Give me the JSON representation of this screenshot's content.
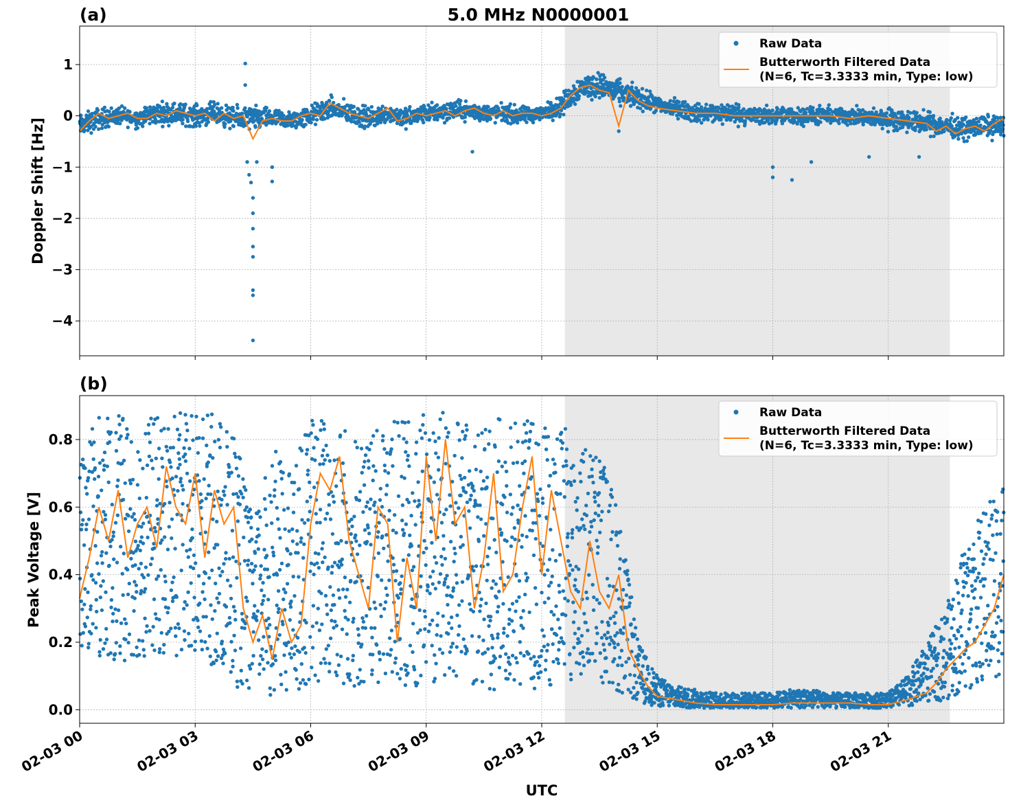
{
  "title": "5.0 MHz N0000001",
  "colors": {
    "raw": "#1f77b4",
    "filtered": "#ff7f0e",
    "shade": "#e8e8e8",
    "grid": "#b0b0b0"
  },
  "xlabel": "UTC",
  "chart_data": [
    {
      "panel_label": "(a)",
      "type": "scatter",
      "ylabel": "Doppler Shift [Hz]",
      "xlim_hours": [
        0,
        24
      ],
      "ylim": [
        -4.68,
        1.75
      ],
      "yticks": [
        1,
        0,
        -1,
        -2,
        -3,
        -4
      ],
      "ytick_labels": [
        "1",
        "0",
        "−1",
        "−2",
        "−3",
        "−4"
      ],
      "shaded_region_hours": [
        12.6,
        22.6
      ],
      "grid": true,
      "legend": {
        "position": "top-right",
        "raw_label": "Raw Data",
        "filtered_label_1": "Butterworth Filtered Data",
        "filtered_label_2": "(N=6, Tc=3.3333 min, Type: low)"
      },
      "series": [
        {
          "name": "Raw Data",
          "kind": "scatter",
          "x_hours": [
            0,
            0.5,
            1,
            1.5,
            2,
            2.5,
            3,
            3.5,
            4,
            4.5,
            5,
            5.5,
            6,
            6.5,
            7,
            7.5,
            8,
            8.5,
            9,
            9.5,
            10,
            10.5,
            11,
            11.5,
            12,
            12.5,
            13,
            13.5,
            14,
            14.5,
            15,
            15.5,
            16,
            16.5,
            17,
            17.5,
            18,
            18.5,
            19,
            19.5,
            20,
            20.5,
            21,
            21.5,
            22,
            22.5,
            23,
            23.5,
            24
          ],
          "center": [
            -0.2,
            -0.05,
            0.0,
            -0.05,
            0.05,
            0.05,
            0.0,
            0.05,
            -0.05,
            -0.05,
            -0.05,
            -0.1,
            0.0,
            0.15,
            0.05,
            -0.05,
            0.05,
            -0.05,
            0.05,
            0.1,
            0.1,
            0.05,
            0.05,
            0.0,
            0.05,
            0.2,
            0.55,
            0.6,
            0.45,
            0.35,
            0.2,
            0.15,
            0.05,
            0.05,
            0.05,
            0.0,
            0.0,
            0.0,
            0.0,
            0.0,
            0.0,
            -0.05,
            -0.05,
            -0.1,
            -0.15,
            -0.2,
            -0.25,
            -0.2,
            -0.2
          ],
          "spread": [
            0.3,
            0.3,
            0.25,
            0.25,
            0.3,
            0.3,
            0.3,
            0.3,
            0.3,
            0.35,
            0.25,
            0.25,
            0.3,
            0.3,
            0.3,
            0.3,
            0.25,
            0.3,
            0.25,
            0.3,
            0.25,
            0.25,
            0.25,
            0.25,
            0.2,
            0.3,
            0.35,
            0.35,
            0.35,
            0.3,
            0.25,
            0.25,
            0.25,
            0.3,
            0.3,
            0.25,
            0.25,
            0.25,
            0.25,
            0.25,
            0.25,
            0.25,
            0.3,
            0.3,
            0.3,
            0.3,
            0.3,
            0.3,
            0.3
          ],
          "outliers": [
            [
              4.3,
              1.02
            ],
            [
              4.3,
              0.6
            ],
            [
              4.35,
              -0.9
            ],
            [
              4.4,
              -1.15
            ],
            [
              4.45,
              -1.3
            ],
            [
              4.5,
              -1.6
            ],
            [
              4.5,
              -1.9
            ],
            [
              4.5,
              -2.2
            ],
            [
              4.5,
              -2.55
            ],
            [
              4.5,
              -2.75
            ],
            [
              4.5,
              -3.4
            ],
            [
              4.5,
              -3.5
            ],
            [
              4.5,
              -4.38
            ],
            [
              4.6,
              -0.9
            ],
            [
              5.0,
              -1.0
            ],
            [
              5.0,
              -1.28
            ],
            [
              10.2,
              -0.7
            ],
            [
              14.0,
              -0.3
            ],
            [
              18.0,
              -1.0
            ],
            [
              18.0,
              -1.2
            ],
            [
              18.5,
              -1.25
            ],
            [
              19.0,
              -0.9
            ],
            [
              20.5,
              -0.8
            ],
            [
              21.8,
              -0.8
            ]
          ]
        },
        {
          "name": "Butterworth Filtered Data",
          "kind": "line",
          "x_hours": [
            0,
            0.25,
            0.5,
            0.75,
            1,
            1.25,
            1.5,
            1.75,
            2,
            2.25,
            2.5,
            2.75,
            3,
            3.25,
            3.5,
            3.75,
            4,
            4.25,
            4.5,
            4.75,
            5,
            5.25,
            5.5,
            5.75,
            6,
            6.25,
            6.5,
            6.75,
            7,
            7.25,
            7.5,
            7.75,
            8,
            8.25,
            8.5,
            8.75,
            9,
            9.25,
            9.5,
            9.75,
            10,
            10.25,
            10.5,
            10.75,
            11,
            11.25,
            11.5,
            11.75,
            12,
            12.25,
            12.5,
            12.75,
            13,
            13.25,
            13.5,
            13.75,
            14,
            14.25,
            14.5,
            14.75,
            15,
            15.5,
            16,
            16.5,
            17,
            17.5,
            18,
            18.5,
            19,
            19.5,
            20,
            20.5,
            21,
            21.5,
            22,
            22.25,
            22.5,
            22.75,
            23,
            23.25,
            23.5,
            23.75,
            24
          ],
          "y": [
            -0.3,
            -0.1,
            0.05,
            -0.05,
            0.0,
            0.05,
            -0.05,
            -0.05,
            0.05,
            0.0,
            0.1,
            0.05,
            0.0,
            0.05,
            -0.1,
            0.05,
            -0.05,
            0.0,
            -0.45,
            -0.1,
            -0.05,
            -0.1,
            -0.1,
            0.0,
            0.05,
            0.0,
            0.25,
            0.15,
            0.05,
            0.0,
            -0.05,
            0.05,
            0.15,
            -0.1,
            -0.05,
            0.05,
            0.0,
            0.05,
            0.1,
            0.0,
            0.1,
            0.15,
            0.05,
            0.0,
            0.1,
            0.0,
            0.05,
            0.05,
            0.0,
            0.05,
            0.15,
            0.4,
            0.55,
            0.6,
            0.5,
            0.45,
            -0.2,
            0.5,
            0.3,
            0.2,
            0.15,
            0.1,
            0.05,
            0.05,
            0.0,
            0.0,
            0.0,
            0.0,
            0.0,
            0.0,
            -0.05,
            0.0,
            -0.05,
            -0.1,
            -0.15,
            -0.3,
            -0.2,
            -0.35,
            -0.25,
            -0.2,
            -0.3,
            -0.15,
            -0.05
          ]
        }
      ]
    },
    {
      "panel_label": "(b)",
      "type": "scatter",
      "ylabel": "Peak Voltage [V]",
      "xlim_hours": [
        0,
        24
      ],
      "ylim": [
        -0.04,
        0.93
      ],
      "yticks": [
        0.8,
        0.6,
        0.4,
        0.2,
        0.0
      ],
      "ytick_labels": [
        "0.8",
        "0.6",
        "0.4",
        "0.2",
        "0.0"
      ],
      "xtick_hours": [
        0,
        3,
        6,
        9,
        12,
        15,
        18,
        21
      ],
      "xtick_labels": [
        "02-03 00",
        "02-03 03",
        "02-03 06",
        "02-03 09",
        "02-03 12",
        "02-03 15",
        "02-03 18",
        "02-03 21"
      ],
      "shaded_region_hours": [
        12.6,
        22.6
      ],
      "grid": true,
      "legend": {
        "position": "top-right",
        "raw_label": "Raw Data",
        "filtered_label_1": "Butterworth Filtered Data",
        "filtered_label_2": "(N=6, Tc=3.3333 min, Type: low)"
      },
      "series": [
        {
          "name": "Raw Data",
          "kind": "scatter",
          "x_hours": [
            0,
            0.5,
            1,
            1.5,
            2,
            2.5,
            3,
            3.5,
            4,
            4.5,
            5,
            5.5,
            6,
            6.5,
            7,
            7.5,
            8,
            8.5,
            9,
            9.5,
            10,
            10.5,
            11,
            11.5,
            12,
            12.5,
            13,
            13.5,
            14,
            14.5,
            15,
            15.5,
            16,
            16.5,
            17,
            17.5,
            18,
            18.5,
            19,
            19.5,
            20,
            20.5,
            21,
            21.5,
            22,
            22.5,
            23,
            23.5,
            24
          ],
          "low": [
            0.17,
            0.15,
            0.14,
            0.15,
            0.16,
            0.14,
            0.12,
            0.12,
            0.07,
            0.05,
            0.04,
            0.05,
            0.07,
            0.07,
            0.06,
            0.05,
            0.05,
            0.07,
            0.07,
            0.07,
            0.07,
            0.06,
            0.06,
            0.06,
            0.06,
            0.07,
            0.08,
            0.08,
            0.05,
            0.02,
            0.01,
            0.005,
            0.005,
            0.005,
            0.005,
            0.005,
            0.005,
            0.005,
            0.005,
            0.005,
            0.005,
            0.005,
            0.005,
            0.01,
            0.02,
            0.03,
            0.05,
            0.08,
            0.1
          ],
          "high": [
            0.8,
            0.87,
            0.87,
            0.87,
            0.87,
            0.88,
            0.88,
            0.88,
            0.85,
            0.55,
            0.78,
            0.7,
            0.88,
            0.88,
            0.85,
            0.8,
            0.86,
            0.86,
            0.88,
            0.88,
            0.86,
            0.84,
            0.88,
            0.87,
            0.88,
            0.85,
            0.8,
            0.78,
            0.6,
            0.2,
            0.1,
            0.07,
            0.06,
            0.05,
            0.05,
            0.05,
            0.05,
            0.06,
            0.06,
            0.05,
            0.05,
            0.05,
            0.05,
            0.1,
            0.2,
            0.3,
            0.5,
            0.6,
            0.7
          ]
        },
        {
          "name": "Butterworth Filtered Data",
          "kind": "line",
          "x_hours": [
            0,
            0.25,
            0.5,
            0.75,
            1,
            1.25,
            1.5,
            1.75,
            2,
            2.25,
            2.5,
            2.75,
            3,
            3.25,
            3.5,
            3.75,
            4,
            4.25,
            4.5,
            4.75,
            5,
            5.25,
            5.5,
            5.75,
            6,
            6.25,
            6.5,
            6.75,
            7,
            7.25,
            7.5,
            7.75,
            8,
            8.25,
            8.5,
            8.75,
            9,
            9.25,
            9.5,
            9.75,
            10,
            10.25,
            10.5,
            10.75,
            11,
            11.25,
            11.5,
            11.75,
            12,
            12.25,
            12.5,
            12.75,
            13,
            13.25,
            13.5,
            13.75,
            14,
            14.25,
            14.5,
            14.75,
            15,
            15.5,
            16,
            16.5,
            17,
            17.5,
            18,
            18.5,
            19,
            19.5,
            20,
            20.5,
            21,
            21.5,
            22,
            22.25,
            22.5,
            22.75,
            23,
            23.25,
            23.5,
            23.75,
            24
          ],
          "y": [
            0.33,
            0.45,
            0.6,
            0.5,
            0.65,
            0.45,
            0.55,
            0.6,
            0.48,
            0.72,
            0.6,
            0.55,
            0.7,
            0.45,
            0.65,
            0.55,
            0.6,
            0.3,
            0.2,
            0.28,
            0.15,
            0.3,
            0.2,
            0.25,
            0.55,
            0.7,
            0.65,
            0.75,
            0.5,
            0.4,
            0.3,
            0.6,
            0.55,
            0.2,
            0.45,
            0.3,
            0.75,
            0.5,
            0.8,
            0.55,
            0.6,
            0.3,
            0.45,
            0.7,
            0.35,
            0.4,
            0.6,
            0.75,
            0.4,
            0.65,
            0.5,
            0.35,
            0.3,
            0.5,
            0.35,
            0.3,
            0.4,
            0.18,
            0.12,
            0.07,
            0.04,
            0.03,
            0.02,
            0.015,
            0.015,
            0.015,
            0.015,
            0.02,
            0.02,
            0.02,
            0.02,
            0.015,
            0.015,
            0.03,
            0.05,
            0.08,
            0.12,
            0.15,
            0.18,
            0.2,
            0.25,
            0.3,
            0.4
          ]
        }
      ]
    }
  ]
}
